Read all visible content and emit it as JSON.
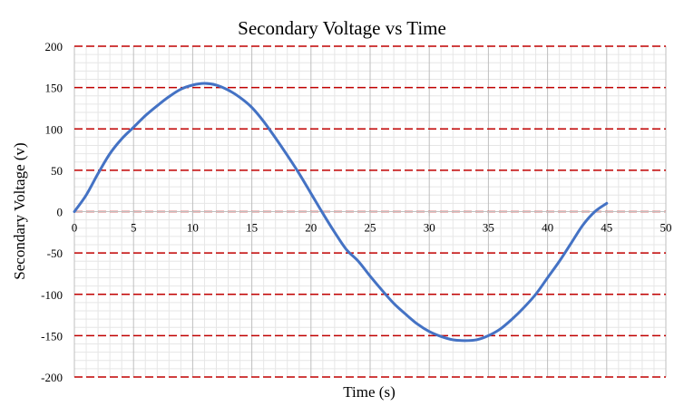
{
  "chart_data": {
    "type": "line",
    "title": "Secondary Voltage vs Time",
    "xlabel": "Time (s)",
    "ylabel": "Secondary Voltage (v)",
    "xlim": [
      0,
      50
    ],
    "ylim": [
      -200,
      200
    ],
    "x_ticks": [
      "0",
      "5",
      "10",
      "15",
      "20",
      "25",
      "30",
      "35",
      "40",
      "45",
      "50"
    ],
    "y_ticks": [
      "200",
      "150",
      "100",
      "50",
      "0",
      "-50",
      "-100",
      "-150",
      "-200"
    ],
    "grid": true,
    "legend": "none",
    "colors": {
      "line": "#4472c4",
      "major_grid_h": "#c00000",
      "major_grid_v": "#bfbfbf",
      "minor_grid": "#e6e6e6"
    },
    "series": [
      {
        "x": [
          0,
          1,
          2,
          3,
          4,
          5,
          6,
          7,
          8,
          9,
          10,
          11,
          12,
          13,
          14,
          15,
          16,
          17,
          18,
          19,
          20,
          21,
          22,
          23,
          24,
          25,
          26,
          27,
          28,
          29,
          30,
          31,
          32,
          33,
          34,
          35,
          36,
          37,
          38,
          39,
          40,
          41,
          42,
          43,
          44,
          45
        ],
        "y": [
          0,
          20,
          46,
          70,
          88,
          102,
          116,
          128,
          139,
          148,
          153,
          155,
          153,
          147,
          138,
          126,
          109,
          89,
          68,
          46,
          22,
          -2,
          -25,
          -46,
          -60,
          -78,
          -95,
          -111,
          -124,
          -136,
          -145,
          -151,
          -155,
          -156,
          -155,
          -150,
          -142,
          -130,
          -116,
          -100,
          -80,
          -60,
          -38,
          -16,
          0,
          10
        ]
      }
    ]
  }
}
